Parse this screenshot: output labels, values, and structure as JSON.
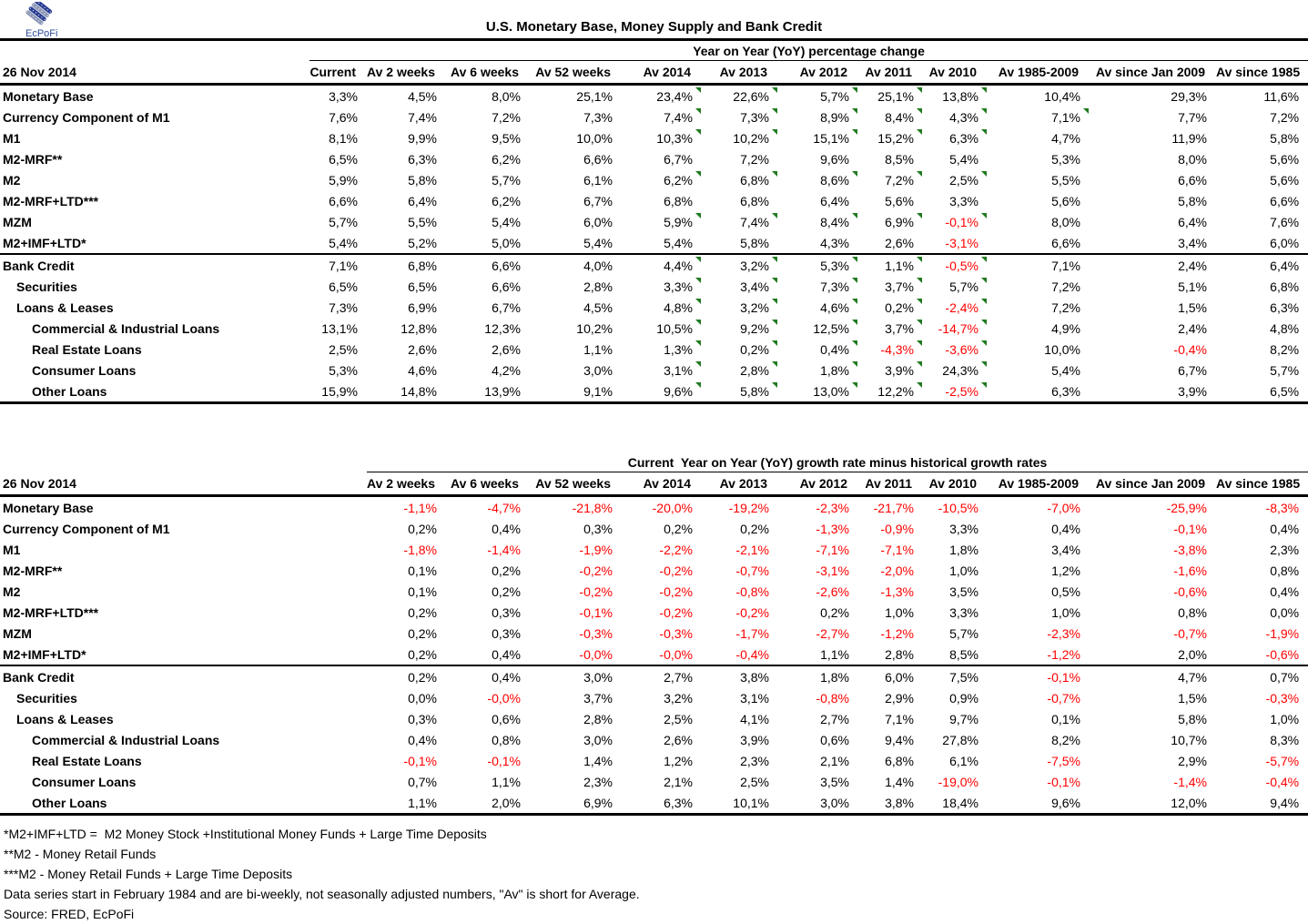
{
  "logo": {
    "text": "EcPoFi"
  },
  "title": "U.S. Monetary Base, Money Supply and Bank Credit",
  "colors": {
    "negative": "#FF0000",
    "comment_indicator": "#1F7A1F",
    "logo_blue": "#2E4B9B"
  },
  "table1": {
    "date": "26 Nov 2014",
    "span_header": "Year on Year (YoY) percentage change",
    "columns": [
      "Current",
      "Av 2 weeks",
      "Av 6 weeks",
      "Av 52 weeks",
      "Av 2014",
      "Av 2013",
      "Av 2012",
      "Av 2011",
      "Av 2010",
      "Av 1985-2009",
      "Av since Jan 2009",
      "Av since 1985"
    ],
    "rows": [
      {
        "label": "Monetary Base",
        "indent": 0,
        "values": [
          "3,3%",
          "4,5%",
          "8,0%",
          "25,1%",
          "23,4%",
          "22,6%",
          "5,7%",
          "25,1%",
          "13,8%",
          "10,4%",
          "29,3%",
          "11,6%"
        ],
        "marks": [
          4,
          5,
          6,
          7,
          8
        ]
      },
      {
        "label": "Currency Component of M1",
        "indent": 0,
        "values": [
          "7,6%",
          "7,4%",
          "7,2%",
          "7,3%",
          "7,4%",
          "7,3%",
          "8,9%",
          "8,4%",
          "4,3%",
          "7,1%",
          "7,7%",
          "7,2%"
        ],
        "marks": [
          4,
          5,
          6,
          7,
          8,
          9
        ]
      },
      {
        "label": "M1",
        "indent": 0,
        "values": [
          "8,1%",
          "9,9%",
          "9,5%",
          "10,0%",
          "10,3%",
          "10,2%",
          "15,1%",
          "15,2%",
          "6,3%",
          "4,7%",
          "11,9%",
          "5,8%"
        ],
        "marks": [
          4,
          5,
          6,
          7,
          8
        ]
      },
      {
        "label": "M2-MRF**",
        "indent": 0,
        "values": [
          "6,5%",
          "6,3%",
          "6,2%",
          "6,6%",
          "6,7%",
          "7,2%",
          "9,6%",
          "8,5%",
          "5,4%",
          "5,3%",
          "8,0%",
          "5,6%"
        ],
        "marks": []
      },
      {
        "label": "M2",
        "indent": 0,
        "values": [
          "5,9%",
          "5,8%",
          "5,7%",
          "6,1%",
          "6,2%",
          "6,8%",
          "8,6%",
          "7,2%",
          "2,5%",
          "5,5%",
          "6,6%",
          "5,6%"
        ],
        "marks": [
          4,
          5,
          6,
          7,
          8
        ]
      },
      {
        "label": "M2-MRF+LTD***",
        "indent": 0,
        "values": [
          "6,6%",
          "6,4%",
          "6,2%",
          "6,7%",
          "6,8%",
          "6,8%",
          "6,4%",
          "5,6%",
          "3,3%",
          "5,6%",
          "5,8%",
          "6,6%"
        ],
        "marks": []
      },
      {
        "label": "MZM",
        "indent": 0,
        "values": [
          "5,7%",
          "5,5%",
          "5,4%",
          "6,0%",
          "5,9%",
          "7,4%",
          "8,4%",
          "6,9%",
          "-0,1%",
          "8,0%",
          "6,4%",
          "7,6%"
        ],
        "marks": [
          4,
          5,
          6,
          7,
          8
        ]
      },
      {
        "label": "M2+IMF+LTD*",
        "indent": 0,
        "values": [
          "5,4%",
          "5,2%",
          "5,0%",
          "5,4%",
          "5,4%",
          "5,8%",
          "4,3%",
          "2,6%",
          "-3,1%",
          "6,6%",
          "3,4%",
          "6,0%"
        ],
        "marks": []
      },
      {
        "label": "Bank Credit",
        "indent": 0,
        "group_start": true,
        "values": [
          "7,1%",
          "6,8%",
          "6,6%",
          "4,0%",
          "4,4%",
          "3,2%",
          "5,3%",
          "1,1%",
          "-0,5%",
          "7,1%",
          "2,4%",
          "6,4%"
        ],
        "marks": [
          4,
          5,
          6,
          7,
          8
        ]
      },
      {
        "label": "Securities",
        "indent": 1,
        "values": [
          "6,5%",
          "6,5%",
          "6,6%",
          "2,8%",
          "3,3%",
          "3,4%",
          "7,3%",
          "3,7%",
          "5,7%",
          "7,2%",
          "5,1%",
          "6,8%"
        ],
        "marks": [
          4,
          5,
          6,
          7,
          8
        ]
      },
      {
        "label": "Loans & Leases",
        "indent": 1,
        "values": [
          "7,3%",
          "6,9%",
          "6,7%",
          "4,5%",
          "4,8%",
          "3,2%",
          "4,6%",
          "0,2%",
          "-2,4%",
          "7,2%",
          "1,5%",
          "6,3%"
        ],
        "marks": [
          4,
          5,
          6,
          7,
          8
        ]
      },
      {
        "label": "Commercial & Industrial Loans",
        "indent": 2,
        "values": [
          "13,1%",
          "12,8%",
          "12,3%",
          "10,2%",
          "10,5%",
          "9,2%",
          "12,5%",
          "3,7%",
          "-14,7%",
          "4,9%",
          "2,4%",
          "4,8%"
        ],
        "marks": [
          4,
          5,
          6,
          7,
          8
        ]
      },
      {
        "label": "Real Estate Loans",
        "indent": 2,
        "values": [
          "2,5%",
          "2,6%",
          "2,6%",
          "1,1%",
          "1,3%",
          "0,2%",
          "0,4%",
          "-4,3%",
          "-3,6%",
          "10,0%",
          "-0,4%",
          "8,2%"
        ],
        "marks": [
          4,
          5,
          6,
          7,
          8
        ]
      },
      {
        "label": "Consumer Loans",
        "indent": 2,
        "values": [
          "5,3%",
          "4,6%",
          "4,2%",
          "3,0%",
          "3,1%",
          "2,8%",
          "1,8%",
          "3,9%",
          "24,3%",
          "5,4%",
          "6,7%",
          "5,7%"
        ],
        "marks": [
          4,
          5,
          6,
          7,
          8
        ]
      },
      {
        "label": "Other Loans",
        "indent": 2,
        "values": [
          "15,9%",
          "14,8%",
          "13,9%",
          "9,1%",
          "9,6%",
          "5,8%",
          "13,0%",
          "12,2%",
          "-2,5%",
          "6,3%",
          "3,9%",
          "6,5%"
        ],
        "marks": [
          4,
          5,
          6,
          7,
          8
        ]
      }
    ]
  },
  "table2": {
    "date": "26 Nov 2014",
    "span_header": "Current  Year on Year (YoY) growth rate minus historical growth rates",
    "columns": [
      "Av 2 weeks",
      "Av 6 weeks",
      "Av 52 weeks",
      "Av 2014",
      "Av 2013",
      "Av 2012",
      "Av 2011",
      "Av 2010",
      "Av 1985-2009",
      "Av since Jan 2009",
      "Av since 1985"
    ],
    "rows": [
      {
        "label": "Monetary Base",
        "indent": 0,
        "values": [
          "-1,1%",
          "-4,7%",
          "-21,8%",
          "-20,0%",
          "-19,2%",
          "-2,3%",
          "-21,7%",
          "-10,5%",
          "-7,0%",
          "-25,9%",
          "-8,3%"
        ],
        "marks": []
      },
      {
        "label": "Currency Component of M1",
        "indent": 0,
        "values": [
          "0,2%",
          "0,4%",
          "0,3%",
          "0,2%",
          "0,2%",
          "-1,3%",
          "-0,9%",
          "3,3%",
          "0,4%",
          "-0,1%",
          "0,4%"
        ],
        "marks": []
      },
      {
        "label": "M1",
        "indent": 0,
        "values": [
          "-1,8%",
          "-1,4%",
          "-1,9%",
          "-2,2%",
          "-2,1%",
          "-7,1%",
          "-7,1%",
          "1,8%",
          "3,4%",
          "-3,8%",
          "2,3%"
        ],
        "marks": []
      },
      {
        "label": "M2-MRF**",
        "indent": 0,
        "values": [
          "0,1%",
          "0,2%",
          "-0,2%",
          "-0,2%",
          "-0,7%",
          "-3,1%",
          "-2,0%",
          "1,0%",
          "1,2%",
          "-1,6%",
          "0,8%"
        ],
        "marks": []
      },
      {
        "label": "M2",
        "indent": 0,
        "values": [
          "0,1%",
          "0,2%",
          "-0,2%",
          "-0,2%",
          "-0,8%",
          "-2,6%",
          "-1,3%",
          "3,5%",
          "0,5%",
          "-0,6%",
          "0,4%"
        ],
        "marks": []
      },
      {
        "label": "M2-MRF+LTD***",
        "indent": 0,
        "values": [
          "0,2%",
          "0,3%",
          "-0,1%",
          "-0,2%",
          "-0,2%",
          "0,2%",
          "1,0%",
          "3,3%",
          "1,0%",
          "0,8%",
          "0,0%"
        ],
        "marks": []
      },
      {
        "label": "MZM",
        "indent": 0,
        "values": [
          "0,2%",
          "0,3%",
          "-0,3%",
          "-0,3%",
          "-1,7%",
          "-2,7%",
          "-1,2%",
          "5,7%",
          "-2,3%",
          "-0,7%",
          "-1,9%"
        ],
        "marks": []
      },
      {
        "label": "M2+IMF+LTD*",
        "indent": 0,
        "values": [
          "0,2%",
          "0,4%",
          "-0,0%",
          "-0,0%",
          "-0,4%",
          "1,1%",
          "2,8%",
          "8,5%",
          "-1,2%",
          "2,0%",
          "-0,6%"
        ],
        "marks": []
      },
      {
        "label": "Bank Credit",
        "indent": 0,
        "group_start": true,
        "values": [
          "0,2%",
          "0,4%",
          "3,0%",
          "2,7%",
          "3,8%",
          "1,8%",
          "6,0%",
          "7,5%",
          "-0,1%",
          "4,7%",
          "0,7%"
        ],
        "marks": []
      },
      {
        "label": "Securities",
        "indent": 1,
        "values": [
          "0,0%",
          "-0,0%",
          "3,7%",
          "3,2%",
          "3,1%",
          "-0,8%",
          "2,9%",
          "0,9%",
          "-0,7%",
          "1,5%",
          "-0,3%"
        ],
        "marks": []
      },
      {
        "label": "Loans & Leases",
        "indent": 1,
        "values": [
          "0,3%",
          "0,6%",
          "2,8%",
          "2,5%",
          "4,1%",
          "2,7%",
          "7,1%",
          "9,7%",
          "0,1%",
          "5,8%",
          "1,0%"
        ],
        "marks": []
      },
      {
        "label": "Commercial & Industrial Loans",
        "indent": 2,
        "values": [
          "0,4%",
          "0,8%",
          "3,0%",
          "2,6%",
          "3,9%",
          "0,6%",
          "9,4%",
          "27,8%",
          "8,2%",
          "10,7%",
          "8,3%"
        ],
        "marks": []
      },
      {
        "label": "Real Estate Loans",
        "indent": 2,
        "values": [
          "-0,1%",
          "-0,1%",
          "1,4%",
          "1,2%",
          "2,3%",
          "2,1%",
          "6,8%",
          "6,1%",
          "-7,5%",
          "2,9%",
          "-5,7%"
        ],
        "marks": []
      },
      {
        "label": "Consumer Loans",
        "indent": 2,
        "values": [
          "0,7%",
          "1,1%",
          "2,3%",
          "2,1%",
          "2,5%",
          "3,5%",
          "1,4%",
          "-19,0%",
          "-0,1%",
          "-1,4%",
          "-0,4%"
        ],
        "marks": []
      },
      {
        "label": "Other Loans",
        "indent": 2,
        "values": [
          "1,1%",
          "2,0%",
          "6,9%",
          "6,3%",
          "10,1%",
          "3,0%",
          "3,8%",
          "18,4%",
          "9,6%",
          "12,0%",
          "9,4%"
        ],
        "marks": []
      }
    ]
  },
  "footnotes": [
    "*M2+IMF+LTD =  M2 Money Stock +Institutional Money Funds + Large Time Deposits",
    "**M2 - Money Retail Funds",
    "***M2 - Money Retail Funds + Large Time Deposits",
    "Data series start in February 1984 and are bi-weekly, not seasonally adjusted numbers, \"Av\" is short for Average.",
    "Source: FRED, EcPoFi"
  ]
}
